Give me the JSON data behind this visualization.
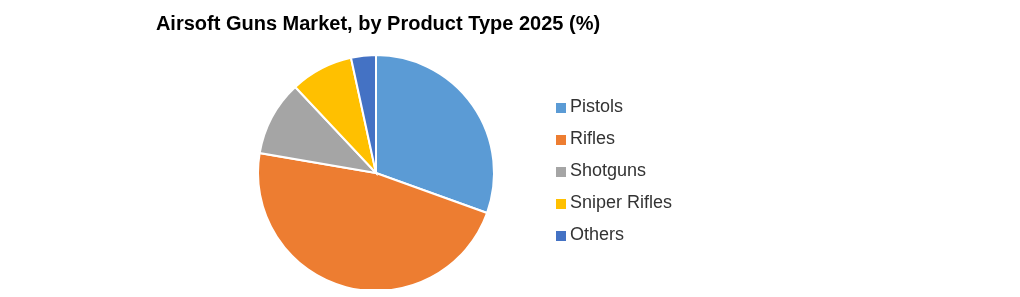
{
  "chart_data": {
    "type": "pie",
    "title": "Airsoft Guns Market, by Product Type 2025 (%)",
    "categories": [
      "Pistols",
      "Rifles",
      "Shotguns",
      "Sniper Rifles",
      "Others"
    ],
    "values": [
      30.5,
      47.2,
      10.3,
      8.6,
      3.4
    ],
    "colors": [
      "#5b9bd5",
      "#ed7d31",
      "#a5a5a5",
      "#ffc000",
      "#4472c4"
    ],
    "legend": "right"
  }
}
